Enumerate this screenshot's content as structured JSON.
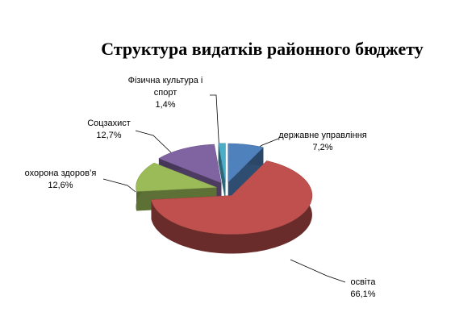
{
  "chart_data": {
    "type": "pie3d",
    "title": "Структура видатків районного бюджету",
    "categories": [
      "державне управління",
      "освіта",
      "охорона здоров’я",
      "Соцзахист",
      "Фізична культура і спорт"
    ],
    "values": [
      7.2,
      66.1,
      12.6,
      12.7,
      1.4
    ],
    "value_labels": [
      "7,2%",
      "66,1%",
      "12,6%",
      "12,7%",
      "1,4%"
    ],
    "colors": [
      "#4f81bd",
      "#c0504d",
      "#9bbb59",
      "#8064a2",
      "#4bacc6"
    ]
  }
}
